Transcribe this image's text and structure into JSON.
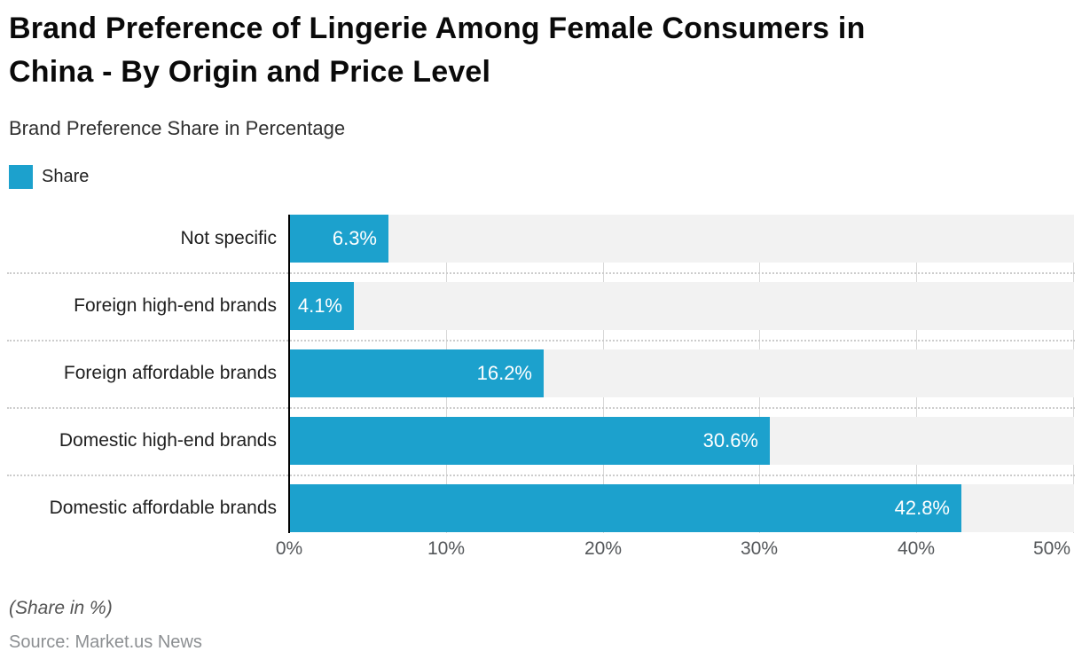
{
  "title": "Brand Preference of Lingerie Among Female Consumers in\nChina - By Origin and Price Level",
  "subtitle": "Brand Preference Share in Percentage",
  "legend": {
    "label": "Share",
    "color": "#1ca1cd"
  },
  "chart_data": {
    "type": "bar",
    "orientation": "horizontal",
    "title": "Brand Preference of Lingerie Among Female Consumers in China - By Origin and Price Level",
    "subtitle": "Brand Preference Share in Percentage",
    "categories": [
      "Not specific",
      "Foreign high-end brands",
      "Foreign affordable brands",
      "Domestic high-end brands",
      "Domestic affordable brands"
    ],
    "series": [
      {
        "name": "Share",
        "values": [
          6.3,
          4.1,
          16.2,
          30.6,
          42.8
        ]
      }
    ],
    "value_labels": [
      "6.3%",
      "4.1%",
      "16.2%",
      "30.6%",
      "42.8%"
    ],
    "x_ticks": [
      "0%",
      "10%",
      "20%",
      "30%",
      "40%",
      "50%"
    ],
    "xlim": [
      0,
      50
    ],
    "xlabel": "",
    "ylabel": "",
    "grid": true,
    "legend_position": "top-left",
    "bar_color": "#1ca1cd",
    "track_color": "#f2f2f2",
    "gridline_color": "#d8d8d8",
    "axis_color": "#000000"
  },
  "footer": {
    "note": "(Share in %)",
    "source": "Source: Market.us News"
  }
}
